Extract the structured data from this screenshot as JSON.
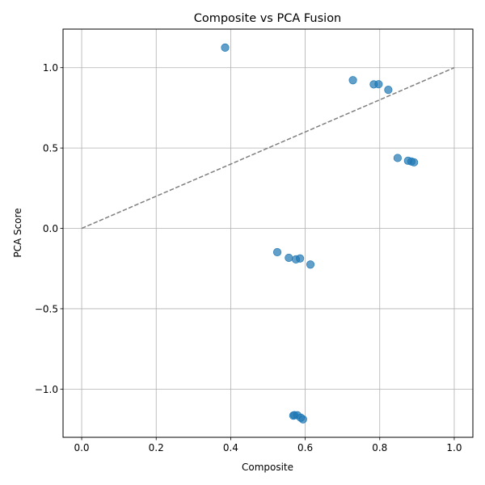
{
  "chart_data": {
    "type": "scatter",
    "title": "Composite vs PCA Fusion",
    "xlabel": "Composite",
    "ylabel": "PCA Score",
    "xlim": [
      -0.05,
      1.05
    ],
    "ylim": [
      -1.3,
      1.24
    ],
    "xticks": [
      0.0,
      0.2,
      0.4,
      0.6,
      0.8,
      1.0
    ],
    "xtick_labels": [
      "0.0",
      "0.2",
      "0.4",
      "0.6",
      "0.8",
      "1.0"
    ],
    "yticks": [
      -1.0,
      -0.5,
      0.0,
      0.5,
      1.0
    ],
    "ytick_labels": [
      "−1.0",
      "−0.5",
      "0.0",
      "0.5",
      "1.0"
    ],
    "grid": true,
    "point_color": "#1f77b4",
    "reference_line": {
      "style": "dashed",
      "color": "#7f7f7f",
      "x": [
        0,
        1
      ],
      "y": [
        0,
        1
      ]
    },
    "points": [
      {
        "x": 0.385,
        "y": 1.125
      },
      {
        "x": 0.728,
        "y": 0.922
      },
      {
        "x": 0.784,
        "y": 0.896
      },
      {
        "x": 0.797,
        "y": 0.897
      },
      {
        "x": 0.823,
        "y": 0.862
      },
      {
        "x": 0.848,
        "y": 0.438
      },
      {
        "x": 0.876,
        "y": 0.421
      },
      {
        "x": 0.885,
        "y": 0.416
      },
      {
        "x": 0.892,
        "y": 0.411
      },
      {
        "x": 0.525,
        "y": -0.148
      },
      {
        "x": 0.556,
        "y": -0.183
      },
      {
        "x": 0.575,
        "y": -0.193
      },
      {
        "x": 0.586,
        "y": -0.187
      },
      {
        "x": 0.614,
        "y": -0.225
      },
      {
        "x": 0.568,
        "y": -1.165
      },
      {
        "x": 0.571,
        "y": -1.162
      },
      {
        "x": 0.579,
        "y": -1.163
      },
      {
        "x": 0.588,
        "y": -1.178
      },
      {
        "x": 0.594,
        "y": -1.188
      }
    ]
  }
}
